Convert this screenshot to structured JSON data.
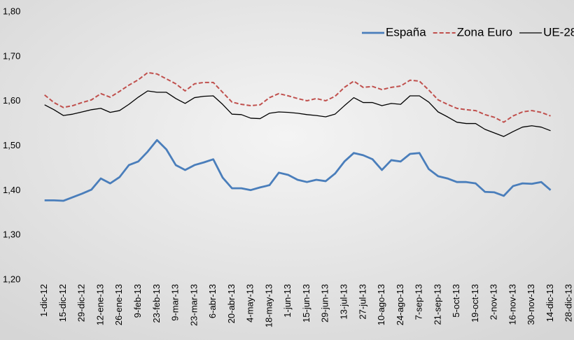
{
  "chart_data": {
    "type": "line",
    "categories": [
      "1-dic-12",
      null,
      "15-dic-12",
      null,
      "29-dic-12",
      null,
      "12-ene-13",
      null,
      "26-ene-13",
      null,
      "9-feb-13",
      null,
      "23-feb-13",
      null,
      "9-mar-13",
      null,
      "23-mar-13",
      null,
      "6-abr-13",
      null,
      "20-abr-13",
      null,
      "4-may-13",
      null,
      "18-may-13",
      null,
      "1-jun-13",
      null,
      "15-jun-13",
      null,
      "29-jun-13",
      null,
      "13-jul-13",
      null,
      "27-jul-13",
      null,
      "10-ago-13",
      null,
      "24-ago-13",
      null,
      "7-sep-13",
      null,
      "21-sep-13",
      null,
      "5-oct-13",
      null,
      "19-oct-13",
      null,
      "2-nov-13",
      null,
      "16-nov-13",
      null,
      "30-nov-13",
      null,
      "14-dic-13",
      null,
      "28-dic-13"
    ],
    "series": [
      {
        "name": "España",
        "color": "#4a7ebb",
        "line_style": "solid",
        "values": [
          1.378,
          1.378,
          1.377,
          1.385,
          1.393,
          1.402,
          1.427,
          1.416,
          1.43,
          1.457,
          1.465,
          1.487,
          1.513,
          1.492,
          1.457,
          1.446,
          1.457,
          1.463,
          1.47,
          1.429,
          1.405,
          1.405,
          1.401,
          1.407,
          1.412,
          1.44,
          1.435,
          1.424,
          1.419,
          1.424,
          1.421,
          1.438,
          1.465,
          1.484,
          1.479,
          1.47,
          1.446,
          1.468,
          1.465,
          1.482,
          1.484,
          1.448,
          1.432,
          1.427,
          1.419,
          1.419,
          1.416,
          1.397,
          1.396,
          1.388,
          1.41,
          1.416,
          1.415,
          1.419,
          1.401,
          null,
          null
        ]
      },
      {
        "name": "Zona Euro",
        "color": "#c0504d",
        "line_style": "dashed",
        "values": [
          1.614,
          1.597,
          1.586,
          1.59,
          1.597,
          1.603,
          1.617,
          1.609,
          1.622,
          1.636,
          1.648,
          1.664,
          1.661,
          1.65,
          1.639,
          1.623,
          1.639,
          1.642,
          1.642,
          1.62,
          1.598,
          1.593,
          1.59,
          1.592,
          1.608,
          1.617,
          1.612,
          1.606,
          1.601,
          1.606,
          1.601,
          1.611,
          1.631,
          1.645,
          1.631,
          1.633,
          1.626,
          1.631,
          1.634,
          1.647,
          1.645,
          1.625,
          1.603,
          1.593,
          1.584,
          1.581,
          1.579,
          1.57,
          1.564,
          1.553,
          1.567,
          1.576,
          1.579,
          1.575,
          1.567,
          null,
          null
        ]
      },
      {
        "name": "UE-28",
        "color": "#000000",
        "line_style": "solid",
        "values": [
          1.592,
          1.581,
          1.568,
          1.571,
          1.576,
          1.581,
          1.584,
          1.575,
          1.579,
          1.593,
          1.609,
          1.623,
          1.62,
          1.62,
          1.606,
          1.595,
          1.608,
          1.611,
          1.612,
          1.593,
          1.571,
          1.57,
          1.562,
          1.561,
          1.573,
          1.576,
          1.575,
          1.573,
          1.57,
          1.568,
          1.565,
          1.571,
          1.59,
          1.608,
          1.597,
          1.597,
          1.59,
          1.595,
          1.593,
          1.612,
          1.612,
          1.598,
          1.576,
          1.565,
          1.553,
          1.55,
          1.55,
          1.537,
          1.529,
          1.521,
          1.532,
          1.542,
          1.545,
          1.542,
          1.534,
          null,
          null
        ]
      }
    ],
    "ylim": [
      1.2,
      1.8
    ],
    "yticks": [
      {
        "value": 1.2,
        "label": "1,20"
      },
      {
        "value": 1.3,
        "label": "1,30"
      },
      {
        "value": 1.4,
        "label": "1,40"
      },
      {
        "value": 1.5,
        "label": "1,50"
      },
      {
        "value": 1.6,
        "label": "1,60"
      },
      {
        "value": 1.7,
        "label": "1,70"
      },
      {
        "value": 1.8,
        "label": "1,80"
      }
    ],
    "grid": false,
    "legend": "top-right"
  }
}
